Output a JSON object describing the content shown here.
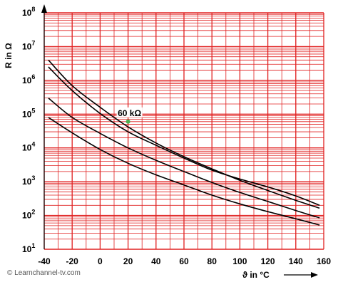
{
  "chart_data": {
    "type": "line",
    "title": "",
    "xlabel": "ϑ in °C",
    "ylabel": "R in Ω",
    "xlim": [
      -40,
      160
    ],
    "ylim": [
      10,
      100000000
    ],
    "yscale": "log",
    "x_ticks": [
      "-40",
      "-20",
      "0",
      "20",
      "40",
      "60",
      "80",
      "100",
      "120",
      "140",
      "160"
    ],
    "y_ticks": [
      {
        "base": "10",
        "exp": "1"
      },
      {
        "base": "10",
        "exp": "2"
      },
      {
        "base": "10",
        "exp": "3"
      },
      {
        "base": "10",
        "exp": "4"
      },
      {
        "base": "10",
        "exp": "5"
      },
      {
        "base": "10",
        "exp": "6"
      },
      {
        "base": "10",
        "exp": "7"
      },
      {
        "base": "10",
        "exp": "8"
      }
    ],
    "grid": true,
    "legend": "none",
    "series": [
      {
        "x": [
          -37,
          -20,
          0,
          20,
          40,
          60,
          80,
          100,
          120,
          140,
          157
        ],
        "values": [
          2500000,
          500000,
          105000,
          30000,
          12000,
          5000,
          2200,
          1200,
          700,
          380,
          200
        ]
      },
      {
        "x": [
          -37,
          -20,
          0,
          20,
          40,
          60,
          80,
          100,
          120,
          140,
          157
        ],
        "values": [
          4000000,
          700000,
          160000,
          42000,
          14000,
          5500,
          2400,
          1100,
          550,
          280,
          165
        ]
      },
      {
        "x": [
          -37,
          -20,
          0,
          20,
          40,
          60,
          80,
          100,
          120,
          140,
          157
        ],
        "values": [
          300000,
          80000,
          27000,
          10000,
          4300,
          2000,
          950,
          480,
          260,
          140,
          85
        ]
      },
      {
        "x": [
          -37,
          -20,
          0,
          20,
          40,
          60,
          80,
          100,
          120,
          140,
          157
        ],
        "values": [
          80000,
          28000,
          9000,
          3500,
          1600,
          800,
          400,
          220,
          130,
          80,
          52
        ]
      }
    ],
    "annotations": [
      {
        "text": "60 kΩ",
        "x": 20,
        "y": 60000,
        "color": "#4caf50"
      }
    ],
    "colors": {
      "grid": "#e02020",
      "curves": "#000000",
      "background": "#ffffff"
    }
  },
  "footer": {
    "copyright": "© Learnchannel-tv.com"
  }
}
